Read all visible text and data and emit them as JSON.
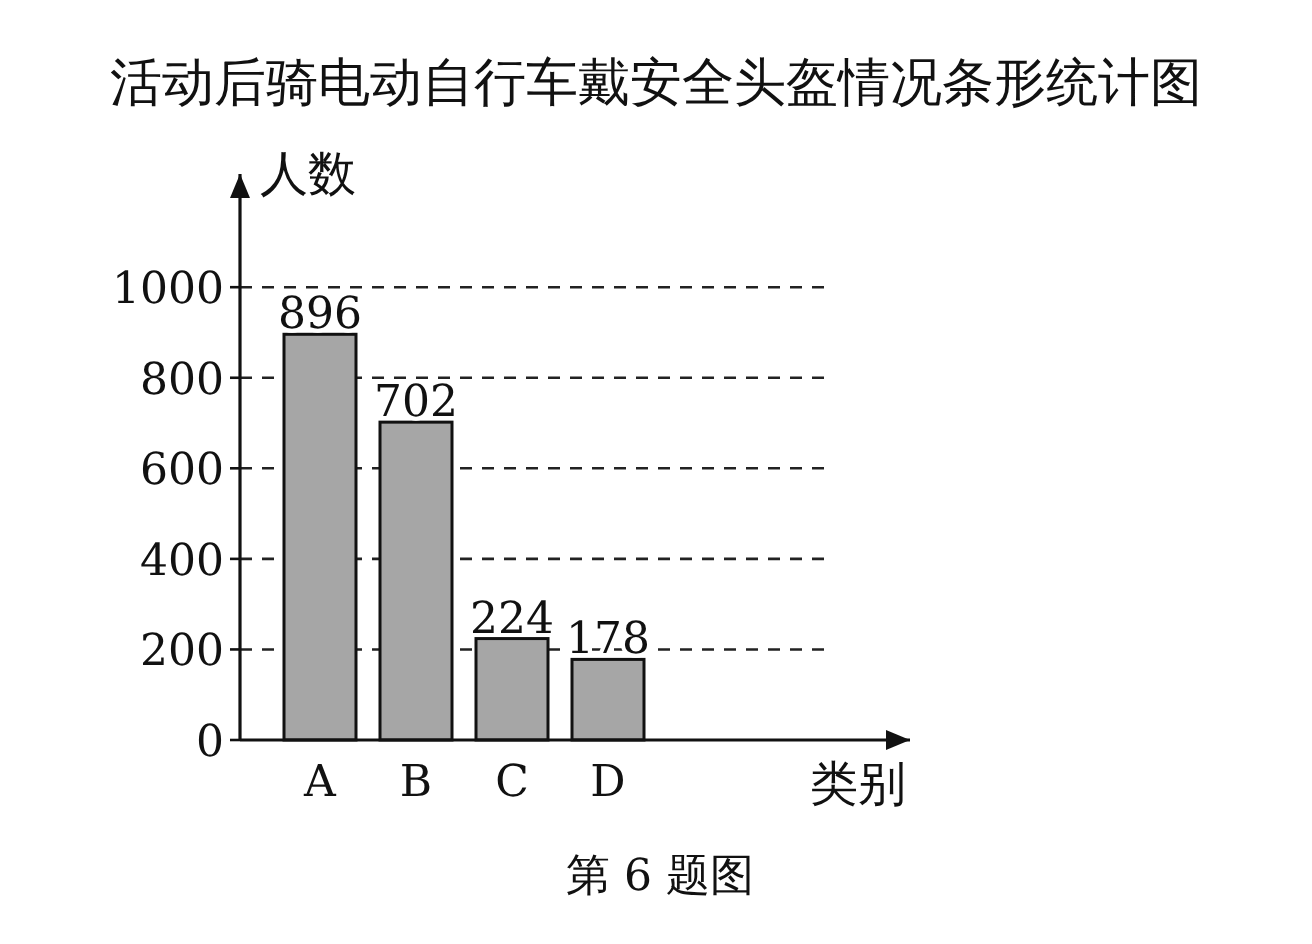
{
  "chart_data": {
    "type": "bar",
    "title": "活动后骑电动自行车戴安全头盔情况条形统计图",
    "ylabel": "人数",
    "xlabel": "类别",
    "annotations": [
      "第 6 题图"
    ],
    "categories": [
      "A",
      "B",
      "C",
      "D"
    ],
    "values": [
      896,
      702,
      224,
      178
    ],
    "color": "#a6a6a6",
    "ylim": [
      0,
      1250
    ],
    "yticks": [
      0,
      200,
      400,
      600,
      800,
      1000
    ],
    "grid": "y",
    "line_style": "dashed",
    "data_labels": true
  }
}
